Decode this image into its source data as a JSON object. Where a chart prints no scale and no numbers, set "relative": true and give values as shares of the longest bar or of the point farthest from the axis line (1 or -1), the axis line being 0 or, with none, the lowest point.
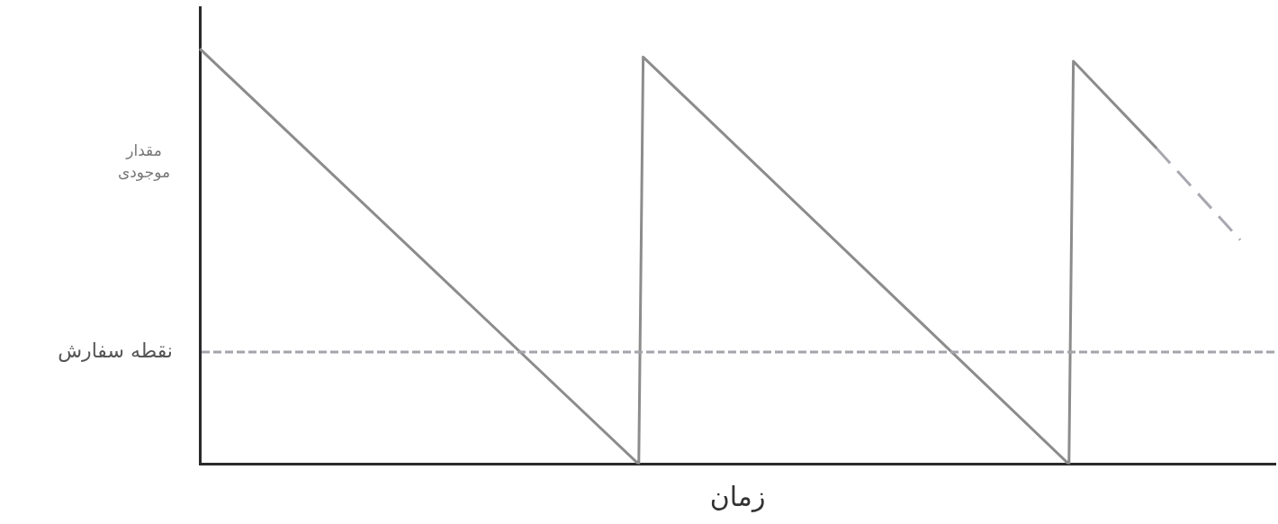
{
  "chart_data": {
    "type": "line",
    "xlabel": "زمان",
    "ylabel": "مقدار موجودی",
    "relative": true,
    "marker": "none",
    "categories": [
      null,
      null,
      null,
      null,
      null,
      null,
      null,
      null,
      null,
      null,
      null,
      null,
      null,
      null,
      null,
      null,
      null,
      null,
      null,
      null,
      null,
      null,
      null,
      null,
      null,
      null,
      null,
      null,
      null,
      null,
      null,
      null,
      null,
      null,
      null,
      null,
      null,
      null,
      null,
      null,
      null,
      null,
      null,
      null,
      null,
      null,
      null,
      null,
      null,
      null,
      null,
      null,
      null,
      null,
      null,
      null,
      null,
      null,
      null,
      null,
      null,
      null,
      null,
      null,
      null,
      null,
      null,
      null,
      null,
      null,
      null,
      null,
      null,
      null,
      null,
      null,
      null,
      null,
      null,
      null,
      null,
      null,
      null,
      null,
      null,
      null,
      null,
      null,
      null,
      null,
      null,
      null,
      null,
      null,
      null,
      null,
      null,
      null,
      null,
      null,
      null,
      null,
      null,
      null,
      null,
      null,
      null,
      null,
      null,
      null,
      null,
      null,
      null,
      null,
      null,
      null,
      null,
      null,
      null,
      null,
      null,
      null,
      null,
      null,
      null,
      null,
      null,
      null,
      null,
      null,
      null,
      null,
      null,
      null,
      null,
      null,
      null,
      null,
      null,
      null,
      null,
      null,
      null,
      null,
      null,
      null,
      null,
      null,
      null,
      null,
      null,
      null,
      null,
      null,
      null,
      null,
      null,
      null,
      null,
      null,
      null,
      null,
      null,
      null,
      null,
      null,
      null,
      null,
      null,
      null,
      null,
      null,
      null,
      null,
      null,
      null,
      null,
      null,
      null,
      null,
      null,
      null,
      null,
      null,
      null,
      null,
      null,
      null,
      null,
      null,
      null,
      null,
      null,
      null,
      null,
      null,
      null,
      null,
      null,
      null,
      null,
      null,
      null,
      null,
      null,
      null,
      null,
      null,
      null,
      null,
      null,
      null,
      null,
      null,
      null,
      null,
      null,
      null,
      null,
      null,
      null,
      null,
      null,
      null,
      null,
      null,
      null,
      null,
      null,
      null,
      null,
      null,
      null,
      null,
      null,
      null,
      null,
      null,
      null,
      null,
      null,
      null,
      null,
      null,
      null,
      null
    ],
    "series": [
      {
        "color": "#8c8c8c",
        "values": [
          1,
          null,
          null,
          null,
          null,
          null,
          null,
          null,
          null,
          null,
          null,
          null,
          null,
          null,
          null,
          null,
          null,
          null,
          null,
          null,
          null,
          null,
          null,
          null,
          null,
          null,
          null,
          null,
          null,
          null,
          null,
          null,
          null,
          null,
          null,
          null,
          null,
          null,
          null,
          null,
          null,
          null,
          null,
          null,
          null,
          null,
          null,
          null,
          null,
          null,
          null,
          null,
          null,
          null,
          null,
          null,
          null,
          null,
          null,
          null,
          null,
          null,
          null,
          null,
          null,
          null,
          null,
          null,
          null,
          null,
          null,
          null,
          null,
          null,
          null,
          null,
          null,
          null,
          null,
          null,
          null,
          null,
          null,
          null,
          null,
          null,
          null,
          null,
          null,
          null,
          null,
          null,
          null,
          null,
          null,
          null,
          null,
          null,
          null,
          null,
          0,
          0.98,
          null,
          null,
          null,
          null,
          null,
          null,
          null,
          null,
          null,
          null,
          null,
          null,
          null,
          null,
          null,
          null,
          null,
          null,
          null,
          null,
          null,
          null,
          null,
          null,
          null,
          null,
          null,
          null,
          null,
          null,
          null,
          null,
          null,
          null,
          null,
          null,
          null,
          null,
          null,
          null,
          null,
          null,
          null,
          null,
          null,
          null,
          null,
          null,
          null,
          null,
          null,
          null,
          null,
          null,
          null,
          null,
          null,
          null,
          null,
          null,
          null,
          null,
          null,
          null,
          null,
          null,
          null,
          null,
          null,
          null,
          null,
          null,
          null,
          null,
          null,
          null,
          null,
          null,
          null,
          null,
          null,
          null,
          null,
          null,
          null,
          null,
          null,
          null,
          null,
          null,
          null,
          null,
          null,
          null,
          null,
          null,
          0,
          0.97,
          null,
          null,
          null,
          null,
          null,
          null,
          null,
          null,
          null,
          null,
          null,
          null,
          null,
          null,
          null,
          null,
          null,
          null,
          0.76,
          null,
          null,
          null,
          null,
          null,
          null,
          null,
          null,
          null,
          null,
          null,
          null,
          null,
          null,
          null,
          null,
          null,
          null,
          null,
          null,
          null,
          null,
          null,
          null,
          null,
          null,
          null
        ]
      },
      {
        "color": "#a8a8b0",
        "line_style": "dashed",
        "values": [
          null,
          null,
          null,
          null,
          null,
          null,
          null,
          null,
          null,
          null,
          null,
          null,
          null,
          null,
          null,
          null,
          null,
          null,
          null,
          null,
          null,
          null,
          null,
          null,
          null,
          null,
          null,
          null,
          null,
          null,
          null,
          null,
          null,
          null,
          null,
          null,
          null,
          null,
          null,
          null,
          null,
          null,
          null,
          null,
          null,
          null,
          null,
          null,
          null,
          null,
          null,
          null,
          null,
          null,
          null,
          null,
          null,
          null,
          null,
          null,
          null,
          null,
          null,
          null,
          null,
          null,
          null,
          null,
          null,
          null,
          null,
          null,
          null,
          null,
          null,
          null,
          null,
          null,
          null,
          null,
          null,
          null,
          null,
          null,
          null,
          null,
          null,
          null,
          null,
          null,
          null,
          null,
          null,
          null,
          null,
          null,
          null,
          null,
          null,
          null,
          null,
          null,
          null,
          null,
          null,
          null,
          null,
          null,
          null,
          null,
          null,
          null,
          null,
          null,
          null,
          null,
          null,
          null,
          null,
          null,
          null,
          null,
          null,
          null,
          null,
          null,
          null,
          null,
          null,
          null,
          null,
          null,
          null,
          null,
          null,
          null,
          null,
          null,
          null,
          null,
          null,
          null,
          null,
          null,
          null,
          null,
          null,
          null,
          null,
          null,
          null,
          null,
          null,
          null,
          null,
          null,
          null,
          null,
          null,
          null,
          null,
          null,
          null,
          null,
          null,
          null,
          null,
          null,
          null,
          null,
          null,
          null,
          null,
          null,
          null,
          null,
          null,
          null,
          null,
          null,
          null,
          null,
          null,
          null,
          null,
          null,
          null,
          null,
          null,
          null,
          null,
          null,
          null,
          null,
          null,
          null,
          null,
          null,
          null,
          null,
          null,
          null,
          null,
          null,
          null,
          null,
          null,
          null,
          null,
          null,
          null,
          null,
          null,
          null,
          null,
          null,
          null,
          null,
          0.76,
          null,
          null,
          null,
          null,
          null,
          null,
          null,
          null,
          null,
          null,
          null,
          null,
          null,
          null,
          null,
          null,
          null,
          null,
          0.54,
          null,
          null,
          null,
          null,
          null,
          null,
          null,
          null
        ]
      }
    ],
    "ref_lines": [
      {
        "axis": "y",
        "value": 0.27,
        "label": "نقطه سفارش",
        "color": "#a4a4ac",
        "line_style": "dashed"
      }
    ]
  }
}
